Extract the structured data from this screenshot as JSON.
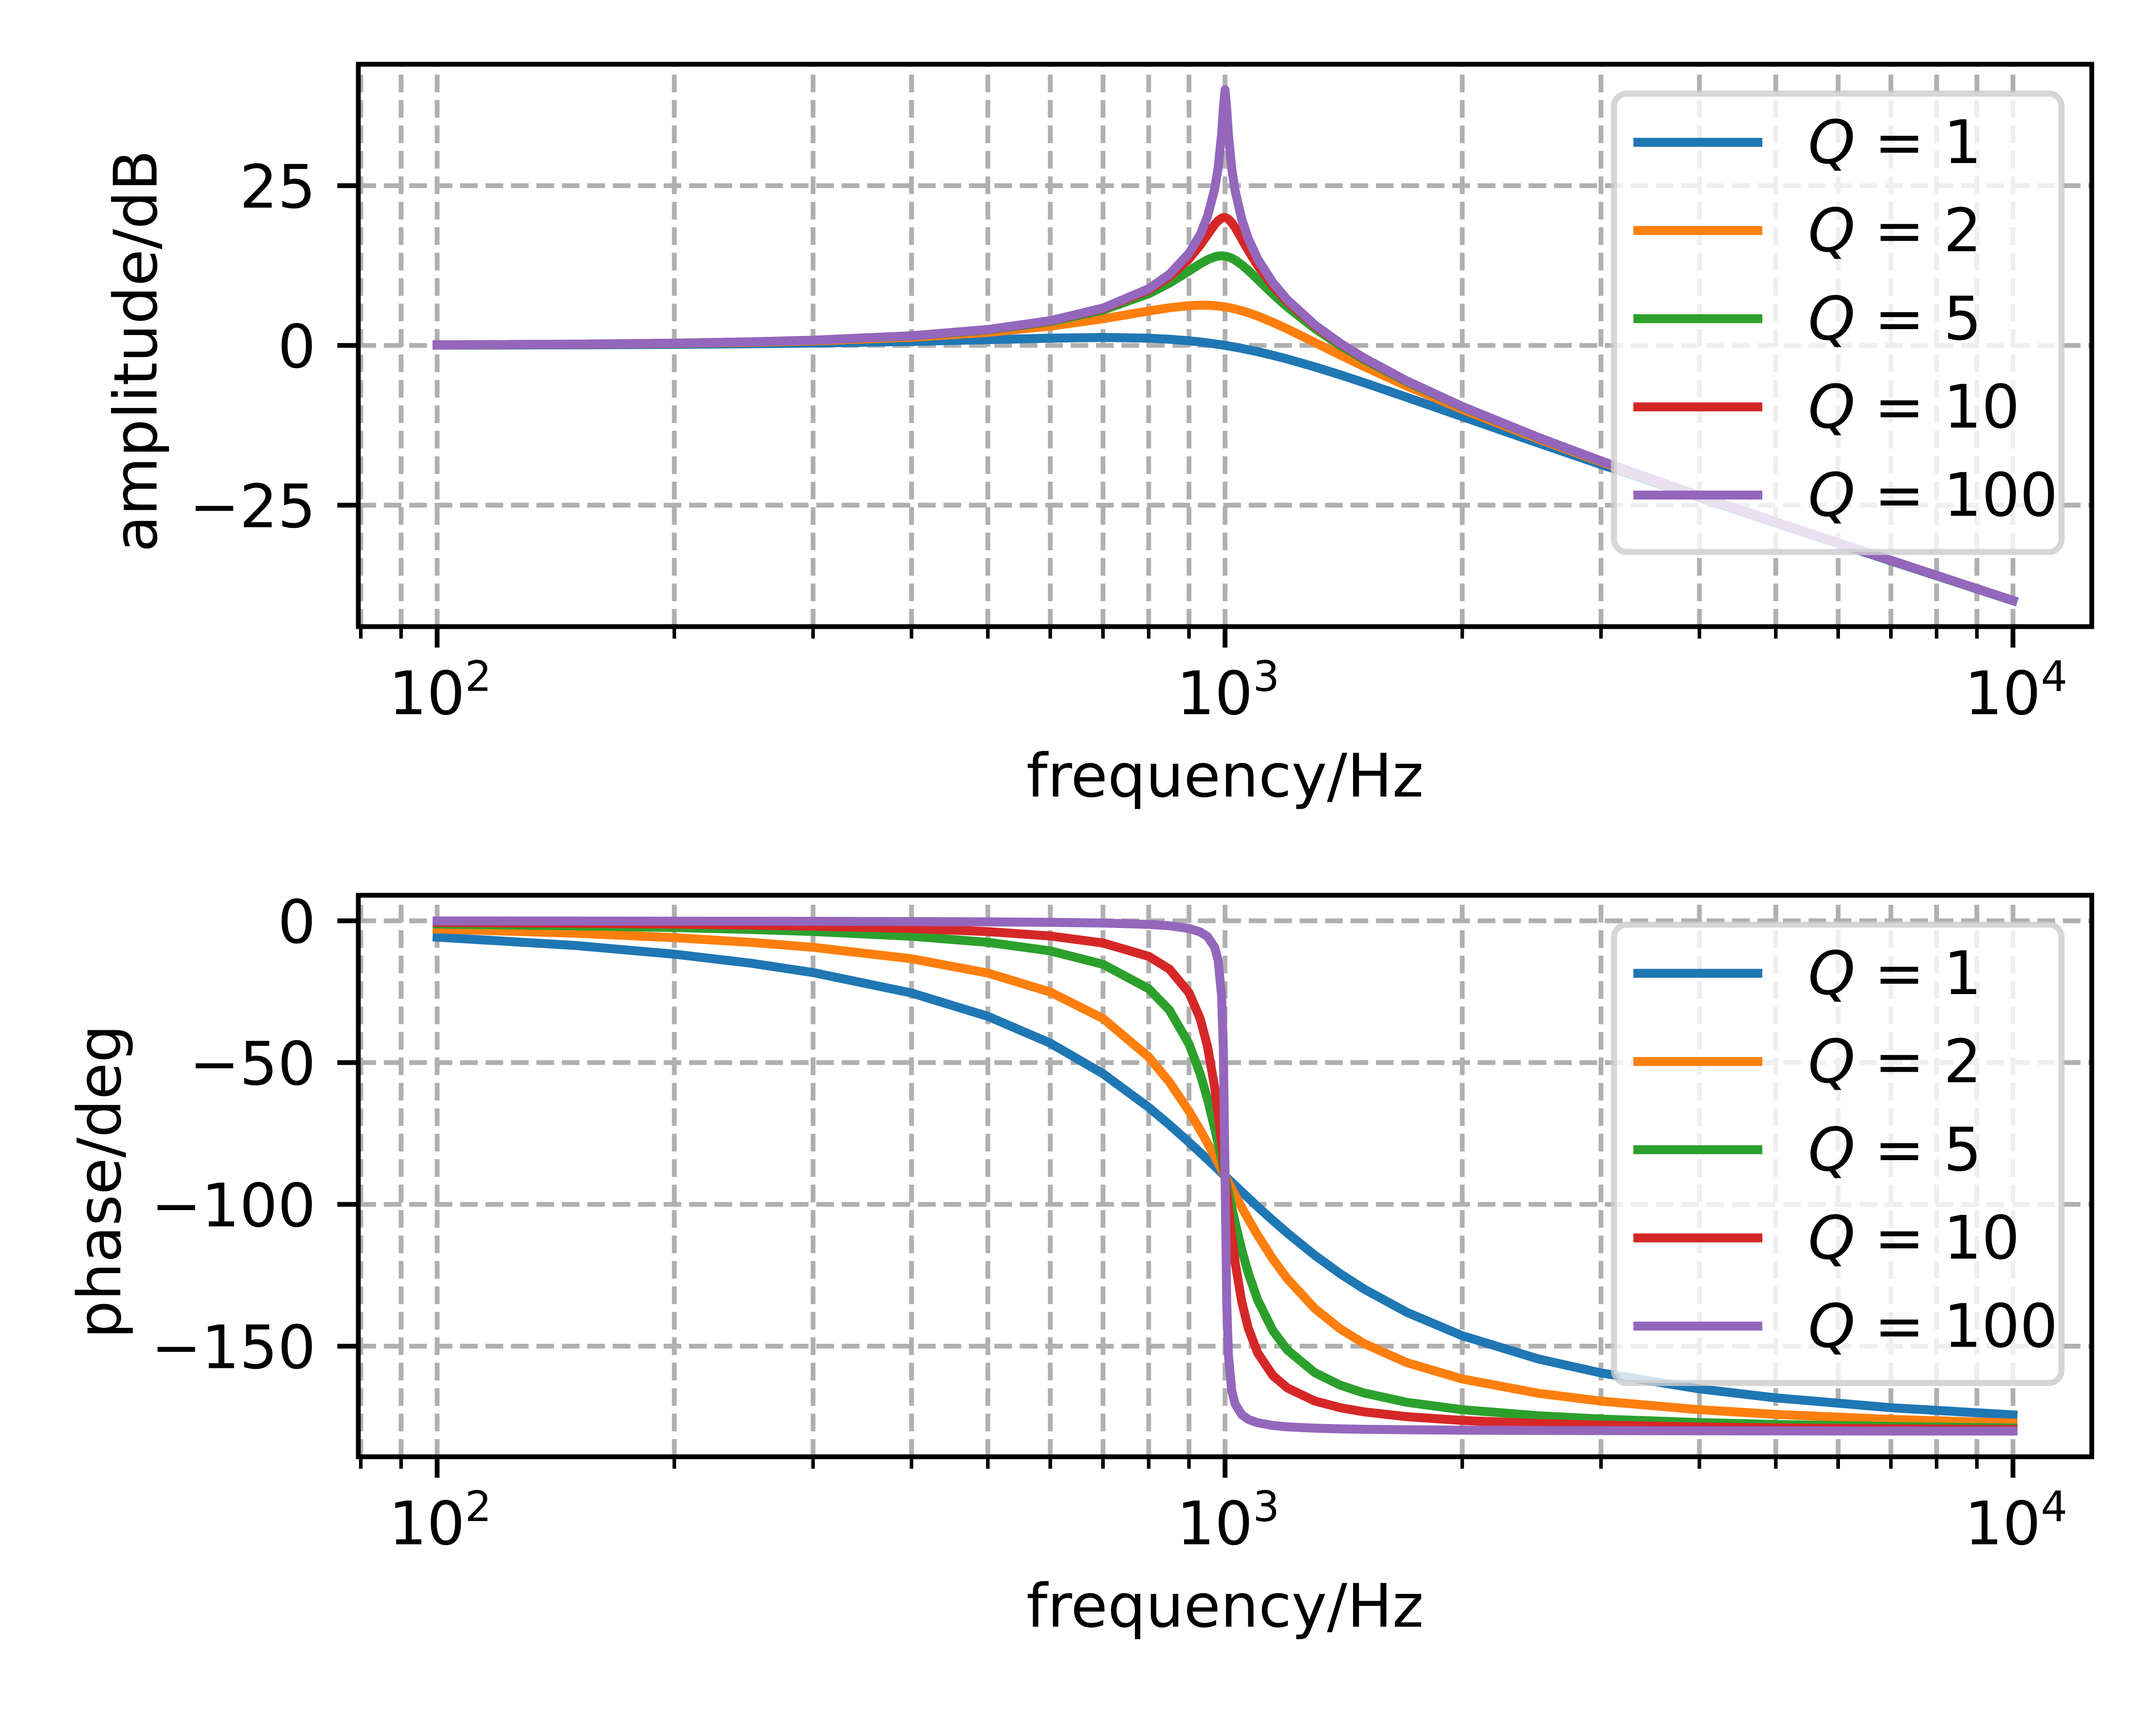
{
  "colors": {
    "background": "#ffffff",
    "axes": "#000000",
    "grid": "#b0b0b0",
    "legend_frame": "#cccccc"
  },
  "chart_data": [
    {
      "type": "line",
      "title": "",
      "xlabel": "frequency/Hz",
      "ylabel": "amplitude/dB",
      "xscale": "log",
      "xlim": [
        79.43,
        12589.25
      ],
      "ylim": [
        -44,
        44
      ],
      "grid": true,
      "grid_style": "dashed",
      "legend_position": "upper right",
      "x_ticks": [
        {
          "value": 100,
          "base": "10",
          "exp": "2"
        },
        {
          "value": 1000,
          "base": "10",
          "exp": "3"
        },
        {
          "value": 10000,
          "base": "10",
          "exp": "4"
        }
      ],
      "x_minor_ticks": [
        80,
        90,
        200,
        300,
        400,
        500,
        600,
        700,
        800,
        900,
        2000,
        3000,
        4000,
        5000,
        6000,
        7000,
        8000,
        9000
      ],
      "y_ticks": [
        {
          "value": -25,
          "label": "−25"
        },
        {
          "value": 0,
          "label": "0"
        },
        {
          "value": 25,
          "label": "25"
        }
      ],
      "x": [
        100,
        150,
        200,
        250,
        300,
        400,
        500,
        600,
        700,
        800,
        850,
        900,
        930,
        950,
        970,
        980,
        990,
        995,
        1000,
        1005,
        1010,
        1020,
        1030,
        1050,
        1070,
        1100,
        1150,
        1200,
        1300,
        1400,
        1500,
        1700,
        2000,
        2500,
        3000,
        4000,
        5000,
        7000,
        10000
      ],
      "series": [
        {
          "name": "Q = 1",
          "color": "#1f77b4",
          "values": [
            0.043,
            0.097,
            0.17,
            0.262,
            0.371,
            0.627,
            0.902,
            1.137,
            1.249,
            1.137,
            0.972,
            0.726,
            0.539,
            0.4,
            0.248,
            0.168,
            0.085,
            0.043,
            0.0,
            -0.044,
            -0.088,
            -0.179,
            -0.272,
            -0.465,
            -0.667,
            -0.983,
            -1.543,
            -2.131,
            -3.357,
            -4.596,
            -5.812,
            -8.104,
            -11.139,
            -15.291,
            -18.633,
            -23.82,
            -27.789,
            -33.717,
            -39.957
          ]
        },
        {
          "name": "Q = 2",
          "color": "#ff7f0e",
          "values": [
            0.076,
            0.172,
            0.308,
            0.484,
            0.703,
            1.275,
            2.041,
            3.014,
            4.173,
            5.382,
            5.89,
            6.223,
            6.299,
            6.287,
            6.221,
            6.168,
            6.101,
            6.062,
            6.021,
            5.976,
            5.927,
            5.821,
            5.704,
            5.434,
            5.125,
            4.602,
            3.619,
            2.568,
            0.464,
            -1.497,
            -3.274,
            -6.329,
            -10.0,
            -14.643,
            -18.212,
            -23.598,
            -27.651,
            -33.648,
            -39.924
          ]
        },
        {
          "name": "Q = 5",
          "color": "#2ca02c",
          "values": [
            0.085,
            0.194,
            0.347,
            0.548,
            0.8,
            1.475,
            2.422,
            3.726,
            5.533,
            8.091,
            9.751,
            11.643,
            12.77,
            13.41,
            13.859,
            13.981,
            14.023,
            14.012,
            13.979,
            13.925,
            13.85,
            13.641,
            13.359,
            12.628,
            11.753,
            10.339,
            8.044,
            6.0,
            2.646,
            0.0,
            -2.181,
            -5.667,
            -9.619,
            -14.442,
            -18.086,
            -23.534,
            -27.612,
            -33.629,
            -39.915
          ]
        },
        {
          "name": "Q = 10",
          "color": "#d62728",
          "values": [
            0.087,
            0.197,
            0.353,
            0.557,
            0.814,
            1.505,
            2.48,
            3.838,
            5.768,
            8.665,
            10.745,
            13.546,
            15.702,
            17.321,
            18.894,
            19.519,
            19.915,
            20.0,
            20.0,
            19.914,
            19.745,
            19.195,
            18.441,
            16.669,
            14.889,
            12.503,
            9.31,
            6.819,
            3.072,
            0.263,
            -2.0,
            -5.564,
            -9.562,
            -14.413,
            -18.068,
            -23.525,
            -27.606,
            -33.626,
            -39.913
          ]
        },
        {
          "name": "Q = 100",
          "color": "#9467bd",
          "values": [
            0.087,
            0.198,
            0.355,
            0.561,
            0.819,
            1.514,
            2.499,
            3.876,
            5.849,
            8.872,
            11.13,
            14.415,
            17.367,
            20.179,
            24.453,
            27.788,
            33.062,
            37.023,
            40.0,
            36.957,
            32.958,
            27.604,
            24.185,
            19.74,
            16.755,
            13.544,
            9.824,
            7.128,
            3.222,
            0.354,
            -1.939,
            -5.529,
            -9.543,
            -14.403,
            -18.062,
            -23.522,
            -27.604,
            -33.625,
            -39.913
          ]
        }
      ]
    },
    {
      "type": "line",
      "title": "",
      "xlabel": "frequency/Hz",
      "ylabel": "phase/deg",
      "xscale": "log",
      "xlim": [
        79.43,
        12589.25
      ],
      "ylim": [
        -189,
        9
      ],
      "grid": true,
      "grid_style": "dashed",
      "legend_position": "upper right",
      "x_ticks": [
        {
          "value": 100,
          "base": "10",
          "exp": "2"
        },
        {
          "value": 1000,
          "base": "10",
          "exp": "3"
        },
        {
          "value": 10000,
          "base": "10",
          "exp": "4"
        }
      ],
      "x_minor_ticks": [
        80,
        90,
        200,
        300,
        400,
        500,
        600,
        700,
        800,
        900,
        2000,
        3000,
        4000,
        5000,
        6000,
        7000,
        8000,
        9000
      ],
      "y_ticks": [
        {
          "value": -150,
          "label": "−150"
        },
        {
          "value": -100,
          "label": "−100"
        },
        {
          "value": -50,
          "label": "−50"
        },
        {
          "value": 0,
          "label": "0"
        }
      ],
      "x": [
        100,
        150,
        200,
        250,
        300,
        400,
        500,
        600,
        700,
        800,
        850,
        900,
        930,
        950,
        970,
        980,
        990,
        995,
        1000,
        1005,
        1010,
        1020,
        1030,
        1050,
        1070,
        1100,
        1150,
        1200,
        1300,
        1400,
        1500,
        1700,
        2000,
        2500,
        3000,
        4000,
        5000,
        7000,
        10000
      ],
      "series": [
        {
          "name": "Q = 1",
          "color": "#1f77b4",
          "values": [
            -5.77,
            -8.72,
            -11.77,
            -14.93,
            -18.25,
            -25.46,
            -33.69,
            -43.15,
            -53.93,
            -65.77,
            -71.92,
            -78.08,
            -81.73,
            -84.14,
            -86.51,
            -87.69,
            -88.85,
            -89.43,
            -90.0,
            -90.57,
            -91.14,
            -92.27,
            -93.38,
            -95.58,
            -97.71,
            -100.81,
            -105.66,
            -110.14,
            -117.95,
            -124.44,
            -129.81,
            -138.03,
            -146.31,
            -154.54,
            -159.44,
            -165.07,
            -168.23,
            -171.7,
            -174.23
          ]
        },
        {
          "name": "Q = 2",
          "color": "#ff7f0e",
          "values": [
            -2.89,
            -4.39,
            -5.95,
            -7.59,
            -9.36,
            -13.39,
            -18.43,
            -25.11,
            -34.46,
            -48.01,
            -56.86,
            -67.11,
            -73.8,
            -78.4,
            -83.05,
            -85.38,
            -87.7,
            -88.85,
            -90.0,
            -91.15,
            -92.28,
            -94.53,
            -96.74,
            -101.05,
            -105.15,
            -110.9,
            -119.29,
            -126.25,
            -136.71,
            -143.9,
            -149.04,
            -155.79,
            -161.57,
            -166.61,
            -169.38,
            -172.41,
            -174.05,
            -175.83,
            -177.11
          ]
        },
        {
          "name": "Q = 5",
          "color": "#2ca02c",
          "values": [
            -1.16,
            -1.76,
            -2.39,
            -3.05,
            -3.77,
            -5.44,
            -7.59,
            -10.62,
            -15.35,
            -23.96,
            -31.49,
            -43.45,
            -54.0,
            -62.84,
            -73.06,
            -78.58,
            -84.26,
            -87.13,
            -90.0,
            -92.86,
            -95.68,
            -101.2,
            -106.47,
            -116.02,
            -124.1,
            -133.67,
            -144.5,
            -151.39,
            -159.35,
            -163.74,
            -166.5,
            -169.8,
            -172.41,
            -174.56,
            -175.71,
            -176.95,
            -177.61,
            -178.33,
            -178.84
          ]
        },
        {
          "name": "Q = 10",
          "color": "#d62728",
          "values": [
            -0.58,
            -0.88,
            -1.19,
            -1.53,
            -1.89,
            -2.73,
            -3.81,
            -5.36,
            -7.82,
            -12.53,
            -17.03,
            -25.35,
            -34.54,
            -44.26,
            -58.64,
            -68.0,
            -78.63,
            -84.28,
            -90.0,
            -95.7,
            -101.26,
            -111.61,
            -120.59,
            -134.31,
            -143.56,
            -152.35,
            -160.37,
            -164.74,
            -169.33,
            -171.7,
            -173.16,
            -174.86,
            -176.19,
            -177.27,
            -177.85,
            -178.47,
            -178.81,
            -179.16,
            -179.42
          ]
        },
        {
          "name": "Q = 100",
          "color": "#9467bd",
          "values": [
            -0.06,
            -0.09,
            -0.12,
            -0.15,
            -0.19,
            -0.27,
            -0.38,
            -0.54,
            -0.79,
            -1.27,
            -1.75,
            -2.71,
            -3.94,
            -5.57,
            -9.32,
            -13.9,
            -26.45,
            -44.93,
            -90.0,
            -134.93,
            -153.32,
            -165.83,
            -170.4,
            -174.15,
            -175.78,
            -177.0,
            -177.96,
            -178.44,
            -178.92,
            -179.16,
            -179.31,
            -179.48,
            -179.62,
            -179.73,
            -179.79,
            -179.85,
            -179.88,
            -179.92,
            -179.94
          ]
        }
      ]
    }
  ]
}
